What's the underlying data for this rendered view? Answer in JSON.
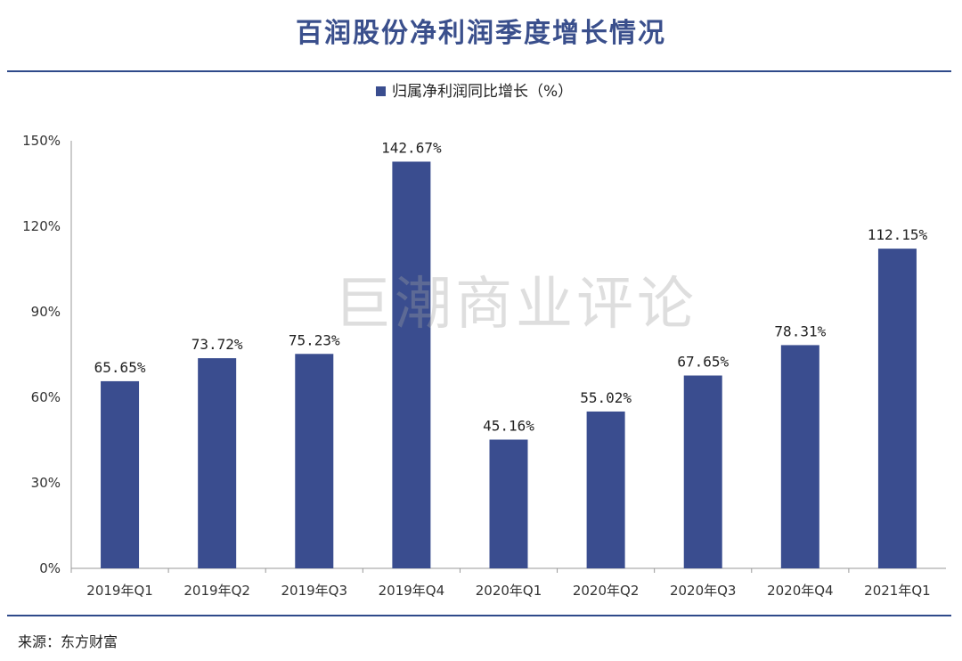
{
  "title": "百润股份净利润季度增长情况",
  "source": "来源：东方财富",
  "watermark": "巨潮商业评论",
  "colors": {
    "bar": "#3a4d8f",
    "title": "#3a4f8c",
    "rule": "#2f4a8a"
  },
  "chart_data": {
    "type": "bar",
    "categories": [
      "2019年Q1",
      "2019年Q2",
      "2019年Q3",
      "2019年Q4",
      "2020年Q1",
      "2020年Q2",
      "2020年Q3",
      "2020年Q4",
      "2021年Q1"
    ],
    "series": [
      {
        "name": "归属净利润同比增长（%）",
        "values": [
          65.65,
          73.72,
          75.23,
          142.67,
          45.16,
          55.02,
          67.65,
          78.31,
          112.15
        ]
      }
    ],
    "data_labels": [
      "65.65%",
      "73.72%",
      "75.23%",
      "142.67%",
      "45.16%",
      "55.02%",
      "67.65%",
      "78.31%",
      "112.15%"
    ],
    "y_ticks": [
      0,
      30,
      60,
      90,
      120,
      150
    ],
    "y_tick_labels": [
      "0%",
      "30%",
      "60%",
      "90%",
      "120%",
      "150%"
    ],
    "ylim": [
      0,
      150
    ],
    "grid": false,
    "legend_position": "top-center"
  }
}
